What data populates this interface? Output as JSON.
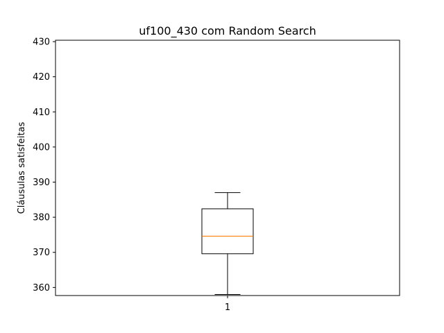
{
  "chart_data": {
    "type": "box",
    "title": "uf100_430 com Random Search",
    "xlabel": "",
    "ylabel": "Cláusulas satisfeitas",
    "ylim": [
      357.7,
      430.4
    ],
    "yticks": [
      360,
      370,
      380,
      390,
      400,
      410,
      420,
      430
    ],
    "categories": [
      "1"
    ],
    "boxes": [
      {
        "category": "1",
        "whisker_low": 358,
        "q1": 369.6,
        "median": 374.6,
        "q3": 382.4,
        "whisker_high": 387
      }
    ],
    "colors": {
      "box": "#000000",
      "median": "#ff7f0e"
    },
    "grid": false
  }
}
